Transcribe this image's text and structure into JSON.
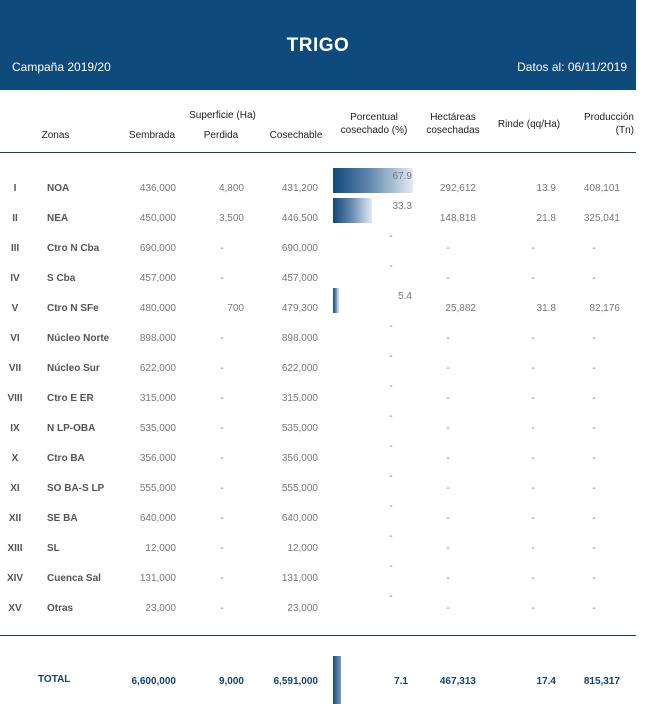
{
  "header": {
    "title": "TRIGO",
    "campaign": "Campaña 2019/20",
    "date": "Datos al: 06/11/2019"
  },
  "columns": {
    "superficie": "Superficie (Ha)",
    "zonas": "Zonas",
    "sembrada": "Sembrada",
    "perdida": "Perdida",
    "cosechable": "Cosechable",
    "porcentual_l1": "Porcentual",
    "porcentual_l2": "cosechado (%)",
    "hectareas_l1": "Hectáreas",
    "hectareas_l2": "cosechadas",
    "rinde": "Rinde (qq/Ha)",
    "produccion_l1": "Producción",
    "produccion_l2": "(Tn)"
  },
  "rows": [
    {
      "num": "I",
      "zona": "NOA",
      "sembrada": "436,000",
      "perdida": "4,800",
      "cosechable": "431,200",
      "pct": "67.9",
      "pct_value": 67.9,
      "hectareas": "292,612",
      "rinde": "13.9",
      "produccion": "408,101"
    },
    {
      "num": "II",
      "zona": "NEA",
      "sembrada": "450,000",
      "perdida": "3,500",
      "cosechable": "446,500",
      "pct": "33.3",
      "pct_value": 33.3,
      "hectareas": "148,818",
      "rinde": "21.8",
      "produccion": "325,041"
    },
    {
      "num": "III",
      "zona": "Ctro N Cba",
      "sembrada": "690,000",
      "perdida": "-",
      "cosechable": "690,000",
      "pct": "-",
      "pct_value": 0,
      "hectareas": "-",
      "rinde": "-",
      "produccion": "-"
    },
    {
      "num": "IV",
      "zona": "S Cba",
      "sembrada": "457,000",
      "perdida": "-",
      "cosechable": "457,000",
      "pct": "-",
      "pct_value": 0,
      "hectareas": "-",
      "rinde": "-",
      "produccion": "-"
    },
    {
      "num": "V",
      "zona": "Ctro N SFe",
      "sembrada": "480,000",
      "perdida": "700",
      "cosechable": "479,300",
      "pct": "5.4",
      "pct_value": 5.4,
      "hectareas": "25,882",
      "rinde": "31.8",
      "produccion": "82,176"
    },
    {
      "num": "VI",
      "zona": "Núcleo Norte",
      "sembrada": "898,000",
      "perdida": "-",
      "cosechable": "898,000",
      "pct": "-",
      "pct_value": 0,
      "hectareas": "-",
      "rinde": "-",
      "produccion": "-"
    },
    {
      "num": "VII",
      "zona": "Núcleo Sur",
      "sembrada": "622,000",
      "perdida": "-",
      "cosechable": "622,000",
      "pct": "-",
      "pct_value": 0,
      "hectareas": "-",
      "rinde": "-",
      "produccion": "-"
    },
    {
      "num": "VIII",
      "zona": "Ctro E ER",
      "sembrada": "315,000",
      "perdida": "-",
      "cosechable": "315,000",
      "pct": "-",
      "pct_value": 0,
      "hectareas": "-",
      "rinde": "-",
      "produccion": "-"
    },
    {
      "num": "IX",
      "zona": "N LP-OBA",
      "sembrada": "535,000",
      "perdida": "-",
      "cosechable": "535,000",
      "pct": "-",
      "pct_value": 0,
      "hectareas": "-",
      "rinde": "-",
      "produccion": "-"
    },
    {
      "num": "X",
      "zona": "Ctro BA",
      "sembrada": "356,000",
      "perdida": "-",
      "cosechable": "356,000",
      "pct": "-",
      "pct_value": 0,
      "hectareas": "-",
      "rinde": "-",
      "produccion": "-"
    },
    {
      "num": "XI",
      "zona": "SO BA-S LP",
      "sembrada": "555,000",
      "perdida": "-",
      "cosechable": "555,000",
      "pct": "-",
      "pct_value": 0,
      "hectareas": "-",
      "rinde": "-",
      "produccion": "-"
    },
    {
      "num": "XII",
      "zona": "SE BA",
      "sembrada": "640,000",
      "perdida": "-",
      "cosechable": "640,000",
      "pct": "-",
      "pct_value": 0,
      "hectareas": "-",
      "rinde": "-",
      "produccion": "-"
    },
    {
      "num": "XIII",
      "zona": "SL",
      "sembrada": "12,000",
      "perdida": "-",
      "cosechable": "12,000",
      "pct": "-",
      "pct_value": 0,
      "hectareas": "-",
      "rinde": "-",
      "produccion": "-"
    },
    {
      "num": "XIV",
      "zona": "Cuenca Sal",
      "sembrada": "131,000",
      "perdida": "-",
      "cosechable": "131,000",
      "pct": "-",
      "pct_value": 0,
      "hectareas": "-",
      "rinde": "-",
      "produccion": "-"
    },
    {
      "num": "XV",
      "zona": "Otras",
      "sembrada": "23,000",
      "perdida": "-",
      "cosechable": "23,000",
      "pct": "-",
      "pct_value": 0,
      "hectareas": "-",
      "rinde": "-",
      "produccion": "-"
    }
  ],
  "total": {
    "label": "TOTAL",
    "sembrada": "6,600,000",
    "perdida": "9,000",
    "cosechable": "6,591,000",
    "pct": "7.1",
    "pct_value": 7.1,
    "hectareas": "467,313",
    "rinde": "17.4",
    "produccion": "815,317"
  },
  "colors": {
    "header_bg": "#0f4a7c",
    "total_text": "#14436e"
  }
}
